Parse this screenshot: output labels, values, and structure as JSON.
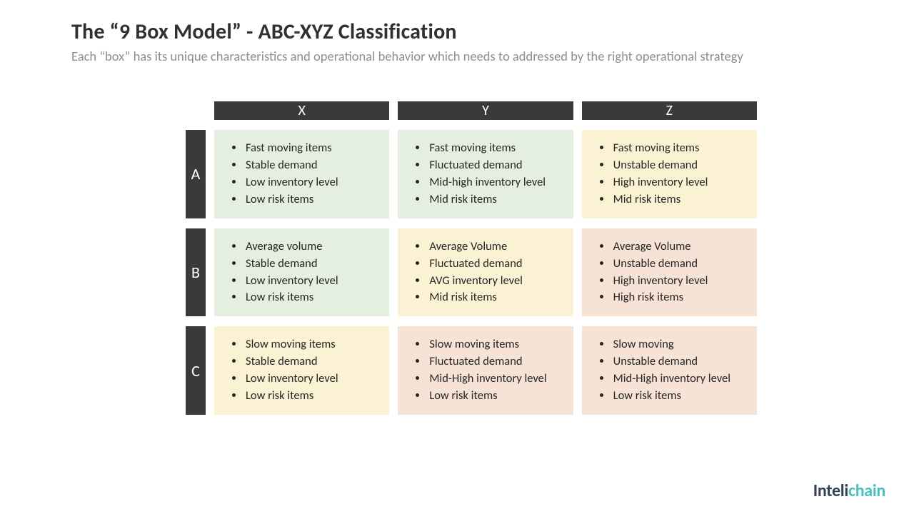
{
  "title": "The “9 Box Model” - ABC-XYZ Classification",
  "subtitle": "Each “box” has its unique characteristics and operational behavior which needs to addressed by the right operational strategy",
  "colors": {
    "header_bg": "#3a3a3a",
    "header_text": "#ffffff",
    "green": "#e5efdf",
    "yellow": "#fbf2d4",
    "peach": "#f7e2d6"
  },
  "columns": [
    "X",
    "Y",
    "Z"
  ],
  "rows": [
    {
      "label": "A",
      "cells": [
        {
          "bg": "green",
          "items": [
            "Fast moving items",
            "Stable demand",
            "Low inventory level",
            "Low risk items"
          ]
        },
        {
          "bg": "green",
          "items": [
            "Fast moving items",
            "Fluctuated demand",
            "Mid-high inventory level",
            "Mid risk items"
          ]
        },
        {
          "bg": "yellow",
          "items": [
            "Fast moving items",
            "Unstable demand",
            "High inventory level",
            "Mid risk items"
          ]
        }
      ]
    },
    {
      "label": "B",
      "cells": [
        {
          "bg": "green",
          "items": [
            "Average volume",
            "Stable demand",
            "Low inventory level",
            "Low risk items"
          ]
        },
        {
          "bg": "yellow",
          "items": [
            "Average Volume",
            "Fluctuated demand",
            "AVG inventory level",
            "Mid risk items"
          ]
        },
        {
          "bg": "peach",
          "items": [
            "Average Volume",
            "Unstable demand",
            "High inventory level",
            "High risk items"
          ]
        }
      ]
    },
    {
      "label": "C",
      "cells": [
        {
          "bg": "yellow",
          "items": [
            "Slow moving items",
            "Stable demand",
            "Low inventory level",
            "Low risk items"
          ]
        },
        {
          "bg": "peach",
          "items": [
            "Slow moving items",
            "Fluctuated demand",
            "Mid-High inventory level",
            "Low risk items"
          ]
        },
        {
          "bg": "peach",
          "items": [
            "Slow moving",
            "Unstable demand",
            "Mid-High inventory level",
            "Low risk items"
          ]
        }
      ]
    }
  ],
  "logo": {
    "part1": "Inteli",
    "part2": "chain"
  }
}
